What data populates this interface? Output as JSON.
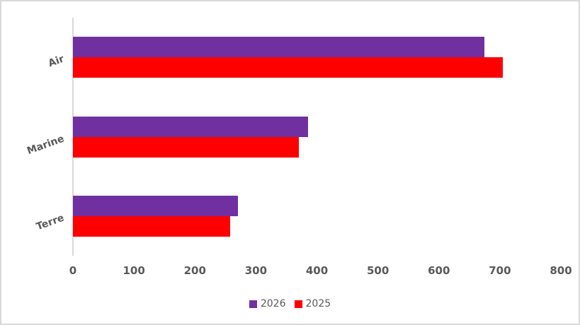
{
  "chart_data": {
    "type": "bar",
    "orientation": "horizontal",
    "title": "",
    "categories": [
      "Air",
      "Marine",
      "Terre"
    ],
    "series": [
      {
        "name": "2026",
        "color": "#7030A0",
        "values": [
          675,
          385,
          270
        ]
      },
      {
        "name": "2025",
        "color": "#FF0000",
        "values": [
          705,
          370,
          258
        ]
      }
    ],
    "xlim": [
      0,
      800
    ],
    "x_ticks": [
      0,
      100,
      200,
      300,
      400,
      500,
      600,
      700,
      800
    ],
    "grid": false,
    "legend_position": "bottom"
  },
  "colors": {
    "background": "#FFFFFF",
    "border": "#D9D9D9",
    "axis_line": "#D9D9D9",
    "text": "#595959",
    "series_2026": "#7030A0",
    "series_2025": "#FF0000"
  }
}
